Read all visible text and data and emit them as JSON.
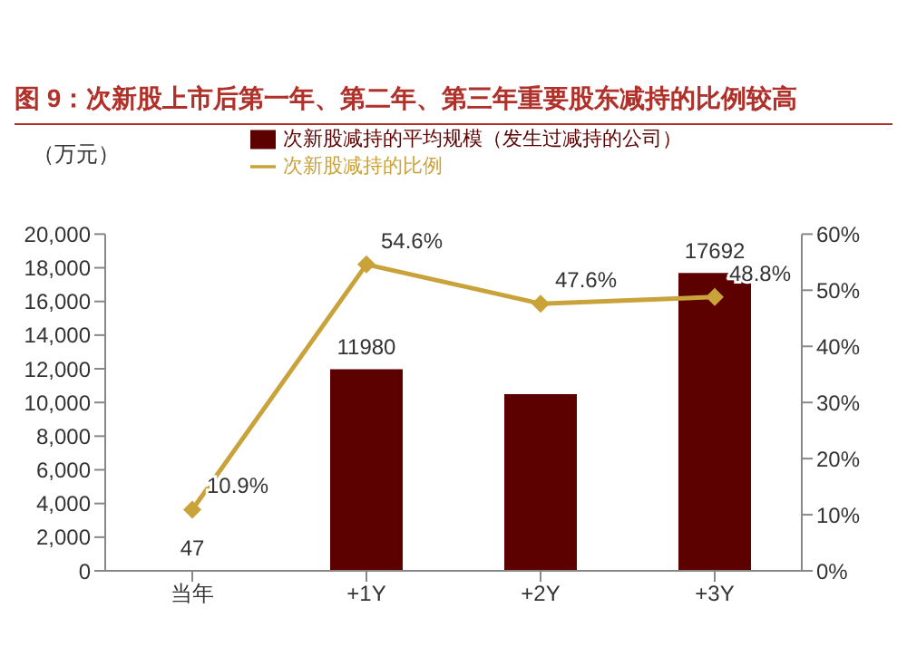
{
  "chart_data": {
    "type": "bar",
    "title": "图 9：次新股上市后第一年、第二年、第三年重要股东减持的比例较高",
    "ylabel": "（万元）",
    "categories": [
      "当年",
      "+1Y",
      "+2Y",
      "+3Y"
    ],
    "series": [
      {
        "name": "次新股减持的平均规模（发生过减持的公司）",
        "color": "#5c0000",
        "values": [
          47,
          11980,
          10500,
          17692
        ],
        "value_labels": [
          "47",
          "11980",
          null,
          "17692"
        ]
      },
      {
        "name": "次新股减持的比例",
        "type": "line",
        "axis": "y2",
        "color": "#c9a23a",
        "values": [
          10.9,
          54.6,
          47.6,
          48.8
        ],
        "value_labels": [
          "10.9%",
          "54.6%",
          "47.6%",
          "48.8%"
        ]
      }
    ],
    "ylim": [
      0,
      20000
    ],
    "yticks": [
      {
        "value": 0,
        "label": "0"
      },
      {
        "value": 2000,
        "label": "2,000"
      },
      {
        "value": 4000,
        "label": "4,000"
      },
      {
        "value": 6000,
        "label": "6,000"
      },
      {
        "value": 8000,
        "label": "8,000"
      },
      {
        "value": 10000,
        "label": "10,000"
      },
      {
        "value": 12000,
        "label": "12,000"
      },
      {
        "value": 14000,
        "label": "14,000"
      },
      {
        "value": 16000,
        "label": "16,000"
      },
      {
        "value": 18000,
        "label": "18,000"
      },
      {
        "value": 20000,
        "label": "20,000"
      }
    ],
    "y2lim": [
      0,
      60
    ],
    "y2ticks": [
      {
        "value": 0,
        "label": "0%"
      },
      {
        "value": 10,
        "label": "10%"
      },
      {
        "value": 20,
        "label": "20%"
      },
      {
        "value": 30,
        "label": "30%"
      },
      {
        "value": 40,
        "label": "40%"
      },
      {
        "value": 50,
        "label": "50%"
      },
      {
        "value": 60,
        "label": "60%"
      }
    ],
    "marker": "diamond",
    "legend": "top"
  }
}
